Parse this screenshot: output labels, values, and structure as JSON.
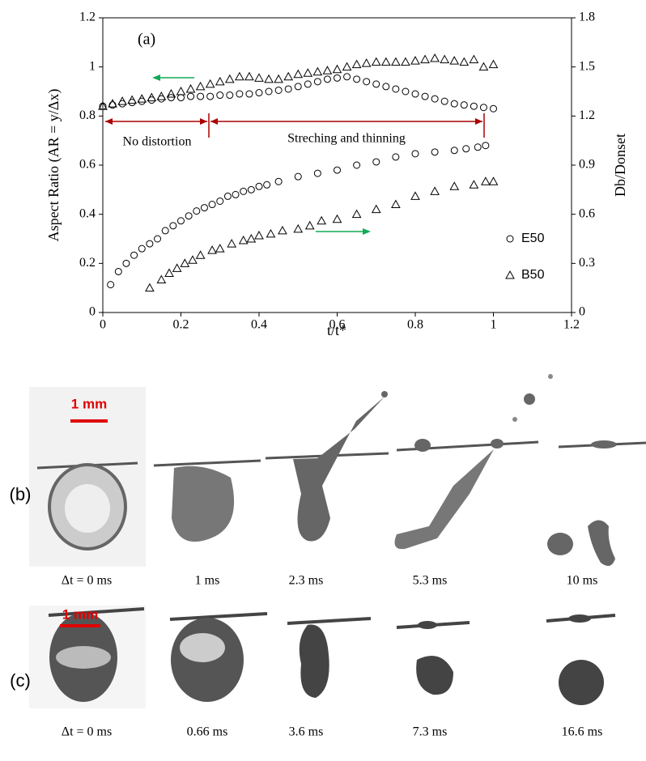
{
  "chart_data": {
    "type": "scatter",
    "panel_label": "(a)",
    "xlabel": "t/t*",
    "ylabel": "Aspect Ratio (AR = y/Δx)",
    "y2label": "Db/Donset",
    "xlim": [
      0,
      1.2
    ],
    "xticks": [
      0,
      0.2,
      0.4,
      0.6,
      0.8,
      1,
      1.2
    ],
    "ylim": [
      0,
      1.2
    ],
    "yticks": [
      0,
      0.2,
      0.4,
      0.6,
      0.8,
      1,
      1.2
    ],
    "y2lim": [
      0,
      1.8
    ],
    "y2ticks": [
      0,
      0.3,
      0.6,
      0.9,
      1.2,
      1.5,
      1.8
    ],
    "legend": "lower right",
    "annotations": [
      "No distortion",
      "Streching and thinning"
    ],
    "series": [
      {
        "name": "E50",
        "marker": "circle",
        "color": "#000000",
        "x": [
          0,
          0.025,
          0.05,
          0.075,
          0.1,
          0.125,
          0.15,
          0.175,
          0.2,
          0.225,
          0.25,
          0.275,
          0.3,
          0.325,
          0.35,
          0.375,
          0.4,
          0.425,
          0.45,
          0.475,
          0.5,
          0.525,
          0.55,
          0.575,
          0.6,
          0.625,
          0.65,
          0.675,
          0.7,
          0.725,
          0.75,
          0.775,
          0.8,
          0.825,
          0.85,
          0.875,
          0.9,
          0.925,
          0.95,
          0.975,
          1.0
        ],
        "values": [
          0.84,
          0.845,
          0.85,
          0.855,
          0.86,
          0.865,
          0.87,
          0.875,
          0.875,
          0.88,
          0.88,
          0.88,
          0.885,
          0.885,
          0.89,
          0.89,
          0.895,
          0.9,
          0.905,
          0.91,
          0.92,
          0.93,
          0.94,
          0.95,
          0.955,
          0.96,
          0.95,
          0.94,
          0.93,
          0.92,
          0.91,
          0.9,
          0.89,
          0.88,
          0.87,
          0.86,
          0.85,
          0.845,
          0.84,
          0.835,
          0.83
        ]
      },
      {
        "name": "B50",
        "marker": "triangle",
        "color": "#000000",
        "x": [
          0,
          0.025,
          0.05,
          0.075,
          0.1,
          0.125,
          0.15,
          0.175,
          0.2,
          0.225,
          0.25,
          0.275,
          0.3,
          0.325,
          0.35,
          0.375,
          0.4,
          0.425,
          0.45,
          0.475,
          0.5,
          0.525,
          0.55,
          0.575,
          0.6,
          0.625,
          0.65,
          0.675,
          0.7,
          0.725,
          0.75,
          0.775,
          0.8,
          0.825,
          0.85,
          0.875,
          0.9,
          0.925,
          0.95,
          0.975,
          1.0
        ],
        "values": [
          0.84,
          0.85,
          0.86,
          0.865,
          0.87,
          0.875,
          0.88,
          0.89,
          0.9,
          0.91,
          0.92,
          0.93,
          0.94,
          0.95,
          0.96,
          0.96,
          0.955,
          0.95,
          0.95,
          0.96,
          0.97,
          0.975,
          0.98,
          0.985,
          0.99,
          1.0,
          1.01,
          1.015,
          1.02,
          1.02,
          1.02,
          1.02,
          1.025,
          1.03,
          1.035,
          1.03,
          1.025,
          1.02,
          1.03,
          1.0,
          1.01
        ]
      },
      {
        "name": "E50",
        "marker": "circle",
        "color": "#000000",
        "axis": "y2",
        "x": [
          0.02,
          0.04,
          0.06,
          0.08,
          0.1,
          0.12,
          0.14,
          0.16,
          0.18,
          0.2,
          0.22,
          0.24,
          0.26,
          0.28,
          0.3,
          0.32,
          0.34,
          0.36,
          0.38,
          0.4,
          0.42,
          0.45,
          0.5,
          0.55,
          0.6,
          0.65,
          0.7,
          0.75,
          0.8,
          0.85,
          0.9,
          0.93,
          0.96,
          0.98
        ],
        "values": [
          0.17,
          0.25,
          0.3,
          0.35,
          0.39,
          0.42,
          0.45,
          0.5,
          0.53,
          0.56,
          0.59,
          0.62,
          0.64,
          0.66,
          0.68,
          0.71,
          0.72,
          0.74,
          0.75,
          0.77,
          0.78,
          0.8,
          0.83,
          0.85,
          0.87,
          0.9,
          0.92,
          0.95,
          0.97,
          0.98,
          0.99,
          1.0,
          1.01,
          1.02
        ]
      },
      {
        "name": "B50",
        "marker": "triangle",
        "color": "#000000",
        "axis": "y2",
        "x": [
          0.12,
          0.15,
          0.17,
          0.19,
          0.21,
          0.23,
          0.25,
          0.28,
          0.3,
          0.33,
          0.36,
          0.38,
          0.4,
          0.43,
          0.46,
          0.5,
          0.53,
          0.56,
          0.6,
          0.65,
          0.7,
          0.75,
          0.8,
          0.85,
          0.9,
          0.95,
          0.98,
          1.0
        ],
        "values": [
          0.15,
          0.2,
          0.24,
          0.27,
          0.3,
          0.32,
          0.35,
          0.38,
          0.39,
          0.42,
          0.44,
          0.45,
          0.47,
          0.48,
          0.5,
          0.51,
          0.53,
          0.56,
          0.57,
          0.6,
          0.63,
          0.66,
          0.71,
          0.74,
          0.77,
          0.78,
          0.8,
          0.8
        ]
      }
    ]
  },
  "photos": {
    "b": {
      "label": "(b)",
      "scale_bar": "1 mm",
      "captions": [
        "Δt = 0 ms",
        "1 ms",
        "2.3 ms",
        "5.3 ms",
        "10 ms"
      ]
    },
    "c": {
      "label": "(c)",
      "scale_bar": "1 mm",
      "captions": [
        "Δt = 0 ms",
        "0.66 ms",
        "3.6 ms",
        "7.3 ms",
        "16.6 ms"
      ]
    }
  }
}
